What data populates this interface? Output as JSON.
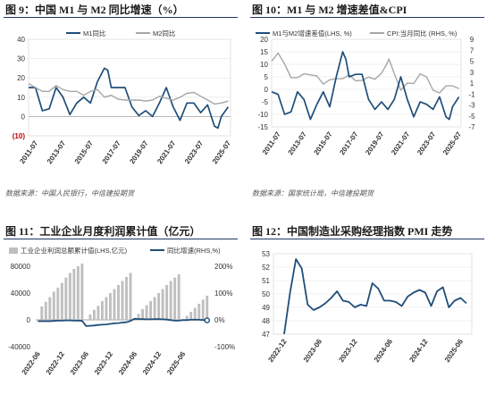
{
  "panels": {
    "fig9": {
      "title": "图 9：中国 M1 与 M2 同比增速（%）",
      "source": "数据来源：中国人民银行，中信建投期货"
    },
    "fig10": {
      "title": "图 10：M1 与 M2 增速差值&CPI",
      "source": "数据来源：国家统计局，中信建投期货"
    },
    "fig11": {
      "title": "图 11：工业企业月度利润累计值（亿元）"
    },
    "fig12": {
      "title": "图 12：中国制造业采购经理指数 PMI 走势"
    }
  },
  "chart_data": [
    {
      "id": "fig9",
      "type": "line",
      "title": "图 9：中国 M1 与 M2 同比增速（%）",
      "x_tick_labels": [
        "2011-07",
        "2013-07",
        "2015-07",
        "2017-07",
        "2019-07",
        "2021-07",
        "2023-07",
        "2025-07"
      ],
      "y_tick_labels": [
        "40",
        "30",
        "20",
        "10",
        "0",
        "(10)"
      ],
      "ylim": [
        -10,
        40
      ],
      "legend": "top-center",
      "grid": "horizontal",
      "series": [
        {
          "name": "M1同比",
          "color": "#1f4e79",
          "points": [
            [
              "2011-01",
              15
            ],
            [
              "2011-07",
              15
            ],
            [
              "2012-01",
              3
            ],
            [
              "2012-07",
              4
            ],
            [
              "2013-01",
              15
            ],
            [
              "2013-07",
              10
            ],
            [
              "2014-01",
              1
            ],
            [
              "2014-07",
              7
            ],
            [
              "2015-01",
              10
            ],
            [
              "2015-07",
              7
            ],
            [
              "2016-01",
              18
            ],
            [
              "2016-07",
              25
            ],
            [
              "2016-10",
              24
            ],
            [
              "2017-01",
              15
            ],
            [
              "2017-07",
              15
            ],
            [
              "2018-01",
              15
            ],
            [
              "2018-07",
              5
            ],
            [
              "2019-01",
              0.5
            ],
            [
              "2019-07",
              3
            ],
            [
              "2020-01",
              0
            ],
            [
              "2020-07",
              7
            ],
            [
              "2021-01",
              15
            ],
            [
              "2021-07",
              5
            ],
            [
              "2022-01",
              -2
            ],
            [
              "2022-07",
              7
            ],
            [
              "2023-01",
              7
            ],
            [
              "2023-07",
              2
            ],
            [
              "2024-01",
              6
            ],
            [
              "2024-07",
              -5
            ],
            [
              "2024-10",
              -6
            ],
            [
              "2025-01",
              0
            ],
            [
              "2025-07",
              5
            ]
          ]
        },
        {
          "name": "M2同比",
          "color": "#a6a6a6",
          "points": [
            [
              "2011-01",
              17
            ],
            [
              "2011-07",
              15
            ],
            [
              "2012-01",
              13
            ],
            [
              "2012-07",
              13
            ],
            [
              "2013-01",
              16
            ],
            [
              "2013-07",
              14
            ],
            [
              "2014-01",
              13
            ],
            [
              "2014-07",
              13
            ],
            [
              "2015-01",
              11
            ],
            [
              "2015-07",
              13
            ],
            [
              "2016-01",
              14
            ],
            [
              "2016-07",
              10
            ],
            [
              "2017-01",
              11
            ],
            [
              "2017-07",
              9
            ],
            [
              "2018-01",
              8.5
            ],
            [
              "2018-07",
              8.5
            ],
            [
              "2019-01",
              8.5
            ],
            [
              "2019-07",
              8
            ],
            [
              "2020-01",
              8.5
            ],
            [
              "2020-07",
              10.5
            ],
            [
              "2021-01",
              9.5
            ],
            [
              "2021-07",
              8.5
            ],
            [
              "2022-01",
              10
            ],
            [
              "2022-07",
              12
            ],
            [
              "2023-01",
              12.5
            ],
            [
              "2023-07",
              10.5
            ],
            [
              "2024-01",
              8.5
            ],
            [
              "2024-07",
              6.5
            ],
            [
              "2025-01",
              7
            ],
            [
              "2025-07",
              8
            ]
          ]
        }
      ]
    },
    {
      "id": "fig10",
      "type": "line",
      "title": "图 10：M1 与 M2 增速差值&CPI",
      "x_tick_labels": [
        "2011-07",
        "2013-07",
        "2015-07",
        "2017-07",
        "2019-07",
        "2021-07",
        "2023-07",
        "2025-07"
      ],
      "y_left_tick_labels": [
        "20",
        "15",
        "10",
        "5",
        "0",
        "-5",
        "-10",
        "-15"
      ],
      "y_right_tick_labels": [
        "9",
        "7",
        "5",
        "3",
        "1",
        "-1",
        "-3",
        "-5",
        "-7"
      ],
      "ylim_left": [
        -15,
        20
      ],
      "ylim_right": [
        -7,
        9
      ],
      "legend": "top-center",
      "grid": "horizontal",
      "series": [
        {
          "name": "M1与M2增速差值(LHS, %)",
          "color": "#1f4e79",
          "axis": "left",
          "points": [
            [
              "2011-01",
              -1
            ],
            [
              "2011-07",
              -2
            ],
            [
              "2012-01",
              -10
            ],
            [
              "2012-07",
              -9
            ],
            [
              "2013-01",
              -1
            ],
            [
              "2013-07",
              -4
            ],
            [
              "2014-01",
              -12
            ],
            [
              "2014-07",
              -6
            ],
            [
              "2015-01",
              -1
            ],
            [
              "2015-07",
              -7
            ],
            [
              "2016-01",
              5
            ],
            [
              "2016-07",
              15
            ],
            [
              "2016-10",
              12
            ],
            [
              "2017-01",
              5
            ],
            [
              "2017-07",
              6
            ],
            [
              "2018-01",
              6
            ],
            [
              "2018-07",
              -4
            ],
            [
              "2019-01",
              -8
            ],
            [
              "2019-07",
              -5
            ],
            [
              "2020-01",
              -8
            ],
            [
              "2020-07",
              -4
            ],
            [
              "2021-01",
              5
            ],
            [
              "2021-07",
              -4
            ],
            [
              "2022-01",
              -11
            ],
            [
              "2022-07",
              -5
            ],
            [
              "2023-01",
              -6
            ],
            [
              "2023-07",
              -8
            ],
            [
              "2024-01",
              -3
            ],
            [
              "2024-07",
              -11
            ],
            [
              "2024-10",
              -12
            ],
            [
              "2025-01",
              -7
            ],
            [
              "2025-07",
              -3
            ]
          ]
        },
        {
          "name": "CPI:当月同比 (RHS, %)",
          "color": "#a6a6a6",
          "axis": "right",
          "points": [
            [
              "2011-01",
              5
            ],
            [
              "2011-07",
              6.5
            ],
            [
              "2012-01",
              4.5
            ],
            [
              "2012-07",
              2
            ],
            [
              "2013-01",
              2
            ],
            [
              "2013-07",
              2.7
            ],
            [
              "2014-01",
              2.5
            ],
            [
              "2014-07",
              2.3
            ],
            [
              "2015-01",
              0.8
            ],
            [
              "2015-07",
              1.6
            ],
            [
              "2016-01",
              1.8
            ],
            [
              "2016-07",
              1.8
            ],
            [
              "2017-01",
              2.5
            ],
            [
              "2017-07",
              1.4
            ],
            [
              "2018-01",
              1.5
            ],
            [
              "2018-07",
              2.1
            ],
            [
              "2019-01",
              1.7
            ],
            [
              "2019-07",
              2.8
            ],
            [
              "2019-12",
              4.5
            ],
            [
              "2020-02",
              5.4
            ],
            [
              "2020-07",
              2.7
            ],
            [
              "2021-01",
              -0.3
            ],
            [
              "2021-07",
              1
            ],
            [
              "2022-01",
              0.9
            ],
            [
              "2022-07",
              2.7
            ],
            [
              "2023-01",
              2.1
            ],
            [
              "2023-07",
              -0.3
            ],
            [
              "2024-01",
              -0.8
            ],
            [
              "2024-07",
              0.5
            ],
            [
              "2025-01",
              0.5
            ],
            [
              "2025-07",
              0
            ]
          ]
        }
      ]
    },
    {
      "id": "fig11",
      "type": "bar",
      "title": "图 11：工业企业月度利润累计值（亿元）",
      "x_tick_labels": [
        "2022-06",
        "2022-12",
        "2023-06",
        "2023-12",
        "2024-06",
        "2024-12",
        "2025-06"
      ],
      "y_left_tick_labels": [
        "80000",
        "40000",
        "0",
        "-40000"
      ],
      "y_right_tick_labels": [
        "200%",
        "100%",
        "0%",
        "-100%"
      ],
      "ylim_left": [
        -40000,
        80000
      ],
      "ylim_right": [
        -100,
        200
      ],
      "legend": "top-center",
      "series": [
        {
          "name": "工业企业利润总额累计值(LHS,亿元)",
          "color": "#bfbfbf",
          "axis": "left",
          "values": [
            0,
            20000,
            27000,
            34000,
            42000,
            48000,
            55000,
            63000,
            70000,
            76000,
            80000,
            84000,
            0,
            8000,
            15000,
            21000,
            28000,
            34000,
            40000,
            46000,
            52000,
            58000,
            64000,
            70000,
            0,
            9000,
            16000,
            22000,
            28000,
            34000,
            40000,
            46000,
            52000,
            58000,
            63000,
            68000,
            0,
            6000,
            12000,
            18000,
            24000,
            30000,
            36000
          ]
        },
        {
          "name": "同比增速(RHS,%)",
          "color": "#1f4e79",
          "axis": "right",
          "values": [
            -5,
            -5,
            -5,
            -5,
            -4,
            -3,
            -3,
            -2,
            -2,
            -3,
            -3,
            -4,
            -23,
            -22,
            -21,
            -19,
            -18,
            -17,
            -15,
            -13,
            -12,
            -10,
            -9,
            -4,
            4,
            3,
            3,
            2,
            2,
            3,
            3,
            2,
            1,
            -1,
            -3,
            -3,
            -0.5,
            -1,
            0.2,
            0.5,
            0.3,
            -0.5,
            -1.8
          ]
        }
      ]
    },
    {
      "id": "fig12",
      "type": "line",
      "title": "图 12：中国制造业采购经理指数 PMI 走势",
      "x_tick_labels": [
        "2022-12",
        "2023-06",
        "2023-12",
        "2024-06",
        "2024-12",
        "2025-06"
      ],
      "y_tick_labels": [
        "53",
        "52",
        "51",
        "50",
        "49",
        "48",
        "47"
      ],
      "ylim": [
        47,
        53
      ],
      "grid": "horizontal",
      "series": [
        {
          "name": "PMI",
          "color": "#1f4e79",
          "values": [
            47.0,
            50.1,
            52.6,
            51.9,
            49.2,
            48.8,
            49.0,
            49.3,
            49.7,
            50.2,
            49.5,
            49.4,
            49.0,
            49.2,
            49.1,
            50.8,
            50.4,
            49.5,
            49.5,
            49.4,
            49.1,
            49.8,
            50.1,
            50.3,
            50.1,
            49.1,
            50.2,
            50.5,
            49.0,
            49.5,
            49.7,
            49.3
          ]
        }
      ]
    }
  ]
}
